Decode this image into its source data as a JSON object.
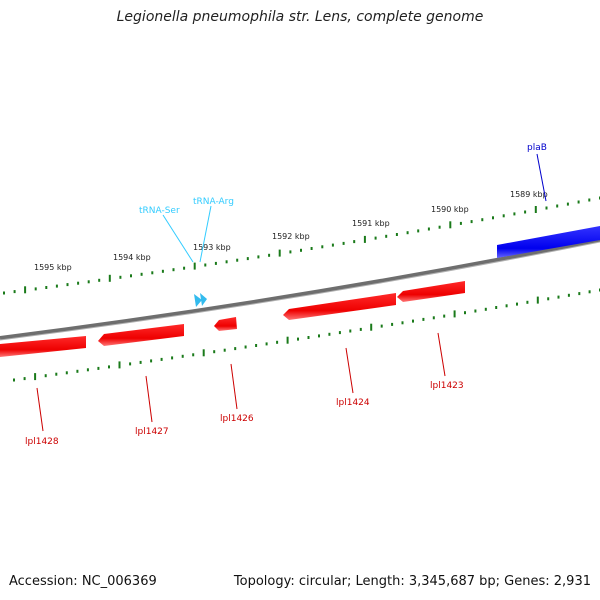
{
  "title": "Legionella pneumophila str. Lens, complete genome",
  "footer": {
    "accession": "Accession: NC_006369",
    "summary": "Topology: circular; Length: 3,345,687 bp; Genes: 2,931"
  },
  "scale_labels": [
    "1589 kbp",
    "1590 kbp",
    "1591 kbp",
    "1592 kbp",
    "1593 kbp",
    "1594 kbp",
    "1595 kbp"
  ],
  "forward_genes": [
    {
      "label": "plaB",
      "color": "#0000ff"
    }
  ],
  "trna_features": [
    {
      "label": "tRNA-Arg",
      "color": "#33ccff"
    },
    {
      "label": "tRNA-Ser",
      "color": "#33ccff"
    }
  ],
  "reverse_genes": [
    {
      "label": "lpl1423",
      "color": "#ff0000"
    },
    {
      "label": "lpl1424",
      "color": "#ff0000"
    },
    {
      "label": "lpl1426",
      "color": "#ff0000"
    },
    {
      "label": "lpl1427",
      "color": "#ff0000"
    },
    {
      "label": "lpl1428",
      "color": "#ff0000"
    }
  ],
  "colors": {
    "backbone": "#808080",
    "scale_ticks": "#1a7a1a",
    "forward_strand": "#0000ff",
    "reverse_strand": "#ff0000",
    "trna": "#33ccff"
  }
}
